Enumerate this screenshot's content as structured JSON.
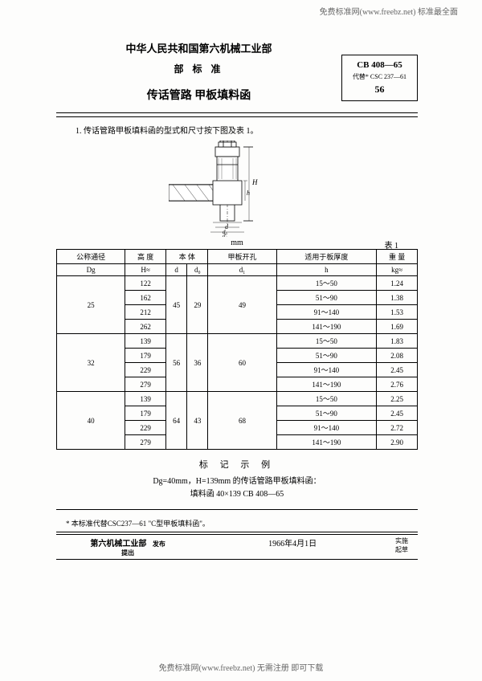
{
  "watermark_top": "免费标准网(www.freebz.net) 标准最全面",
  "watermark_bottom": "免费标准网(www.freebz.net) 无需注册 即可下载",
  "header": {
    "ministry": "中华人民共和国第六机械工业部",
    "std": "部 标 准",
    "title": "传话管路 甲板填料函",
    "code": "CB 408—65",
    "supersedes": "代替* CSC 237—61",
    "page_num": "56"
  },
  "intro": "1. 传话管路甲板填料函的型式和尺寸按下图及表 1。",
  "unit": "mm",
  "table_label": "表 1",
  "table": {
    "header1": {
      "c1": "公称通径",
      "c2": "高 度",
      "c3": "本 体",
      "c4": "甲板开孔",
      "c5": "适用于板厚度",
      "c6": "重 量"
    },
    "header2": {
      "c1": "Dg",
      "c2": "H≈",
      "c3a": "d",
      "c3b": "d₀",
      "c4": "d₁",
      "c5": "h",
      "c6": "kg≈"
    },
    "groups": [
      {
        "dg": "25",
        "d": "45",
        "d0": "29",
        "d1": "49",
        "rows": [
          {
            "H": "122",
            "h": "15～50",
            "kg": "1.24"
          },
          {
            "H": "162",
            "h": "51～90",
            "kg": "1.38"
          },
          {
            "H": "212",
            "h": "91～140",
            "kg": "1.53"
          },
          {
            "H": "262",
            "h": "141～190",
            "kg": "1.69"
          }
        ]
      },
      {
        "dg": "32",
        "d": "56",
        "d0": "36",
        "d1": "60",
        "rows": [
          {
            "H": "139",
            "h": "15～50",
            "kg": "1.83"
          },
          {
            "H": "179",
            "h": "51～90",
            "kg": "2.08"
          },
          {
            "H": "229",
            "h": "91～140",
            "kg": "2.45"
          },
          {
            "H": "279",
            "h": "141～190",
            "kg": "2.76"
          }
        ]
      },
      {
        "dg": "40",
        "d": "64",
        "d0": "43",
        "d1": "68",
        "rows": [
          {
            "H": "139",
            "h": "15～50",
            "kg": "2.25"
          },
          {
            "H": "179",
            "h": "51～90",
            "kg": "2.45"
          },
          {
            "H": "229",
            "h": "91～140",
            "kg": "2.72"
          },
          {
            "H": "279",
            "h": "141～190",
            "kg": "2.90"
          }
        ]
      }
    ]
  },
  "marking": "标 记 示 例",
  "example_line1": "Dg=40mm，H=139mm 的传话管路甲板填料函：",
  "example_line2": "填料函 40×139 CB 408—65",
  "footnote": "* 本标准代替CSC237—61 \"C型甲板填料函\"。",
  "footer": {
    "issuer": "第六机械工业部",
    "issue1": "发布",
    "issue2": "提出",
    "date": "1966年4月1日",
    "impl1": "实施",
    "impl2": "起草"
  }
}
